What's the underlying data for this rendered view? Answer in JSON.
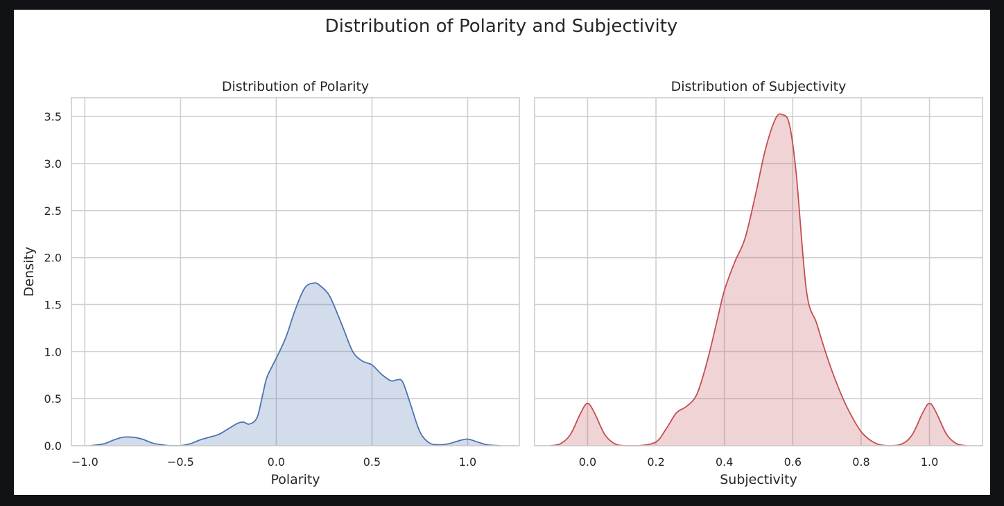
{
  "figure": {
    "title": "Distribution of Polarity and Subjectivity"
  },
  "chart_data": [
    {
      "type": "area",
      "title": "Distribution of Polarity",
      "xlabel": "Polarity",
      "ylabel": "Density",
      "xlim": [
        -1.07,
        1.27
      ],
      "ylim": [
        0,
        3.7
      ],
      "xticks": [
        -1.0,
        -0.5,
        0.0,
        0.5,
        1.0
      ],
      "xtick_labels": [
        "−1.0",
        "−0.5",
        "0.0",
        "0.5",
        "1.0"
      ],
      "yticks": [
        0.0,
        0.5,
        1.0,
        1.5,
        2.0,
        2.5,
        3.0,
        3.5
      ],
      "ytick_labels": [
        "0.0",
        "0.5",
        "1.0",
        "1.5",
        "2.0",
        "2.5",
        "3.0",
        "3.5"
      ],
      "grid": true,
      "color": "#4c72b0",
      "fill_color": "#4c72b0",
      "fill_opacity": 0.25,
      "x": [
        -0.97,
        -0.9,
        -0.85,
        -0.8,
        -0.75,
        -0.7,
        -0.65,
        -0.6,
        -0.55,
        -0.5,
        -0.45,
        -0.4,
        -0.35,
        -0.3,
        -0.25,
        -0.2,
        -0.17,
        -0.14,
        -0.1,
        -0.07,
        -0.05,
        -0.02,
        0.0,
        0.05,
        0.1,
        0.15,
        0.2,
        0.23,
        0.27,
        0.3,
        0.35,
        0.4,
        0.45,
        0.5,
        0.55,
        0.6,
        0.63,
        0.66,
        0.7,
        0.75,
        0.8,
        0.85,
        0.9,
        0.95,
        1.0,
        1.05,
        1.1,
        1.17
      ],
      "y": [
        0.0,
        0.02,
        0.06,
        0.09,
        0.09,
        0.07,
        0.03,
        0.01,
        0.0,
        0.0,
        0.02,
        0.06,
        0.09,
        0.12,
        0.18,
        0.24,
        0.25,
        0.23,
        0.3,
        0.55,
        0.72,
        0.85,
        0.93,
        1.15,
        1.45,
        1.68,
        1.73,
        1.7,
        1.62,
        1.5,
        1.25,
        1.0,
        0.9,
        0.86,
        0.76,
        0.69,
        0.7,
        0.68,
        0.45,
        0.15,
        0.03,
        0.01,
        0.02,
        0.05,
        0.07,
        0.04,
        0.01,
        0.0
      ]
    },
    {
      "type": "area",
      "title": "Distribution of Subjectivity",
      "xlabel": "Subjectivity",
      "ylabel": "",
      "xlim": [
        -0.155,
        1.155
      ],
      "ylim": [
        0,
        3.7
      ],
      "xticks": [
        0.0,
        0.2,
        0.4,
        0.6,
        0.8,
        1.0
      ],
      "xtick_labels": [
        "0.0",
        "0.2",
        "0.4",
        "0.6",
        "0.8",
        "1.0"
      ],
      "yticks": [
        0.0,
        0.5,
        1.0,
        1.5,
        2.0,
        2.5,
        3.0,
        3.5
      ],
      "grid": true,
      "color": "#c44e52",
      "fill_color": "#c44e52",
      "fill_opacity": 0.25,
      "x": [
        -0.11,
        -0.08,
        -0.05,
        -0.02,
        0.0,
        0.02,
        0.05,
        0.08,
        0.11,
        0.15,
        0.2,
        0.23,
        0.26,
        0.29,
        0.32,
        0.35,
        0.38,
        0.4,
        0.43,
        0.46,
        0.49,
        0.52,
        0.55,
        0.57,
        0.59,
        0.61,
        0.64,
        0.67,
        0.7,
        0.73,
        0.76,
        0.8,
        0.84,
        0.88,
        0.92,
        0.95,
        0.98,
        1.0,
        1.02,
        1.05,
        1.08,
        1.11
      ],
      "y": [
        0.0,
        0.02,
        0.12,
        0.35,
        0.45,
        0.35,
        0.12,
        0.02,
        0.0,
        0.0,
        0.04,
        0.18,
        0.35,
        0.42,
        0.55,
        0.9,
        1.35,
        1.65,
        1.95,
        2.2,
        2.65,
        3.15,
        3.48,
        3.52,
        3.42,
        2.9,
        1.65,
        1.3,
        0.95,
        0.65,
        0.4,
        0.15,
        0.03,
        0.0,
        0.02,
        0.12,
        0.35,
        0.45,
        0.35,
        0.12,
        0.02,
        0.0
      ]
    }
  ]
}
